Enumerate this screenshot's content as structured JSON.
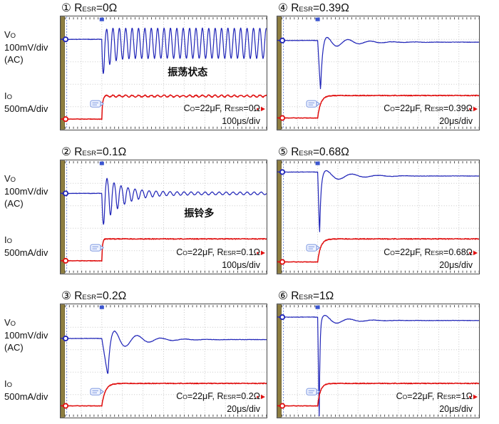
{
  "axis_labels": {
    "vo_pre": "V",
    "vo_sub": "O",
    "vo_scale": "100mV/div",
    "vo_coupling": "(AC)",
    "io_pre": "I",
    "io_sub": "O",
    "io_scale": "500mA/div"
  },
  "labels_common": {
    "r_pre": "R",
    "r_sub": "ESR",
    "cond_pre": "C",
    "cond_sub1": "O",
    "cond_mid": "=22μF, R",
    "cond_sub2": "ESR"
  },
  "panels": [
    {
      "num": "①",
      "r": "=0Ω",
      "cond_tail": "=0Ω",
      "timebase": "100μs/div",
      "annotation": "振荡状态",
      "ann_left": "52%",
      "ann_top": "43%"
    },
    {
      "num": "②",
      "r": "=0.1Ω",
      "cond_tail": "=0.1Ω",
      "timebase": "100μs/div",
      "annotation": "振铃多",
      "ann_left": "60%",
      "ann_top": "40%"
    },
    {
      "num": "③",
      "r": "=0.2Ω",
      "cond_tail": "=0.2Ω",
      "timebase": "20μs/div",
      "annotation": "",
      "ann_left": "0%",
      "ann_top": "0%"
    },
    {
      "num": "④",
      "r": "=0.39Ω",
      "cond_tail": "=0.39Ω",
      "timebase": "20μs/div",
      "annotation": "",
      "ann_left": "0%",
      "ann_top": "0%"
    },
    {
      "num": "⑤",
      "r": "=0.68Ω",
      "cond_tail": "=0.68Ω",
      "timebase": "20μs/div",
      "annotation": "",
      "ann_left": "0%",
      "ann_top": "0%"
    },
    {
      "num": "⑥",
      "r": "=1Ω",
      "cond_tail": "=1Ω",
      "timebase": "20μs/div",
      "annotation": "",
      "ann_left": "0%",
      "ann_top": "0%"
    }
  ],
  "colors": {
    "trace_vo": "#2025b8",
    "trace_io": "#e01010",
    "grid": "#c9c9c9",
    "border": "#4a4a4a",
    "olive_bar": "#8e7e40",
    "olive_edge": "#6a5d2c",
    "left_dotted": "#6f86d8",
    "trigger": "#3b55d0",
    "badge": "#7b96e0",
    "badge_fill": "#f0f4ff",
    "tick": "#555555",
    "text": "#0d0d0d"
  },
  "chart_data": [
    {
      "type": "line",
      "panel": "①",
      "title": "RESR=0Ω",
      "condition": "CO=22μF, RESR=0Ω",
      "annotation": "振荡状态",
      "x_axis": {
        "time_per_div": "100μs/div",
        "divisions": 10
      },
      "y_axis": {
        "vo_scale": "100mV/div (AC)",
        "io_scale": "500mA/div",
        "divisions": 5
      },
      "load_step_at_fraction": 0.2,
      "behavior": "sustained oscillation after load step",
      "vo_model": {
        "model": "osc",
        "base": 0.2,
        "center": 0.235,
        "amp": 0.135,
        "extra": 0.17,
        "T": 0.031,
        "t0": 0.2,
        "dx": 0.0015
      },
      "io_model": {
        "base": 0.91,
        "top": 0.705,
        "t0": 0.2,
        "rise": 0.01,
        "rip": 0.008
      }
    },
    {
      "type": "line",
      "panel": "②",
      "title": "RESR=0.1Ω",
      "condition": "CO=22μF, RESR=0.1Ω",
      "annotation": "振铃多",
      "x_axis": {
        "time_per_div": "100μs/div",
        "divisions": 10
      },
      "y_axis": {
        "vo_scale": "100mV/div (AC)",
        "io_scale": "500mA/div",
        "divisions": 5
      },
      "load_step_at_fraction": 0.2,
      "behavior": "long decaying ringing after load step",
      "vo_model": {
        "model": "ring",
        "base": 0.29,
        "ampD": 0.29,
        "ampU": 0.16,
        "res": 0.012,
        "T": 0.034,
        "tau": 0.09,
        "t0": 0.2,
        "dx": 0.0015
      },
      "io_model": {
        "base": 0.89,
        "top": 0.695,
        "t0": 0.2,
        "rise": 0.01,
        "rip": 0.004
      }
    },
    {
      "type": "line",
      "panel": "③",
      "title": "RESR=0.2Ω",
      "condition": "CO=22μF, RESR=0.2Ω",
      "annotation": "",
      "x_axis": {
        "time_per_div": "20μs/div",
        "divisions": 10
      },
      "y_axis": {
        "vo_scale": "100mV/div (AC)",
        "io_scale": "500mA/div",
        "divisions": 5
      },
      "load_step_at_fraction": 0.2,
      "behavior": "dip then a few damped ring cycles",
      "vo_model": {
        "model": "spike",
        "base": 0.3,
        "dip": 0.61,
        "settle": 0.31,
        "wf": 0.03,
        "rec": 0.1,
        "T": 0.115,
        "A": 0.125,
        "tau": 1.0,
        "t0": 0.2,
        "dx": 0.002
      },
      "io_model": {
        "base": 0.9,
        "top": 0.7,
        "t0": 0.2,
        "rise": 0.05,
        "rip": 0.003
      }
    },
    {
      "type": "line",
      "panel": "④",
      "title": "RESR=0.39Ω",
      "condition": "CO=22μF, RESR=0.39Ω",
      "annotation": "",
      "x_axis": {
        "time_per_div": "20μs/div",
        "divisions": 10
      },
      "y_axis": {
        "vo_scale": "100mV/div (AC)",
        "io_scale": "500mA/div",
        "divisions": 5
      },
      "load_step_at_fraction": 0.2,
      "behavior": "narrow dip, small overshoot, fast settle",
      "vo_model": {
        "model": "spike",
        "base": 0.21,
        "dip": 0.64,
        "settle": 0.225,
        "wf": 0.015,
        "rec": 0.08,
        "T": 0.11,
        "A": 0.07,
        "tau": 1.1,
        "t0": 0.2,
        "dx": 0.002
      },
      "io_model": {
        "base": 0.9,
        "top": 0.7,
        "t0": 0.2,
        "rise": 0.045,
        "rip": 0.003
      }
    },
    {
      "type": "line",
      "panel": "⑤",
      "title": "RESR=0.68Ω",
      "condition": "CO=22μF, RESR=0.68Ω",
      "annotation": "",
      "x_axis": {
        "time_per_div": "20μs/div",
        "divisions": 10
      },
      "y_axis": {
        "vo_scale": "100mV/div (AC)",
        "io_scale": "500mA/div",
        "divisions": 5
      },
      "load_step_at_fraction": 0.2,
      "behavior": "very narrow deep dip, small damped wiggle",
      "vo_model": {
        "model": "spike",
        "base": 0.1,
        "dip": 0.63,
        "settle": 0.135,
        "wf": 0.01,
        "rec": 0.05,
        "T": 0.13,
        "A": 0.065,
        "tau": 0.9,
        "t0": 0.2,
        "dx": 0.002
      },
      "io_model": {
        "base": 0.9,
        "top": 0.695,
        "t0": 0.2,
        "rise": 0.045,
        "rip": 0.003
      }
    },
    {
      "type": "line",
      "panel": "⑥",
      "title": "RESR=1Ω",
      "condition": "CO=22μF, RESR=1Ω",
      "annotation": "",
      "x_axis": {
        "time_per_div": "20μs/div",
        "divisions": 10
      },
      "y_axis": {
        "vo_scale": "100mV/div (AC)",
        "io_scale": "500mA/div",
        "divisions": 5
      },
      "load_step_at_fraction": 0.2,
      "behavior": "needle-thin dip to bottom of screen, quick settle",
      "vo_model": {
        "model": "spike",
        "base": 0.11,
        "dip": 0.99,
        "settle": 0.14,
        "wf": 0.008,
        "rec": 0.03,
        "T": 0.12,
        "A": 0.06,
        "tau": 0.8,
        "t0": 0.2,
        "dx": 0.002
      },
      "io_model": {
        "base": 0.9,
        "top": 0.7,
        "t0": 0.2,
        "rise": 0.04,
        "rip": 0.003
      }
    }
  ]
}
